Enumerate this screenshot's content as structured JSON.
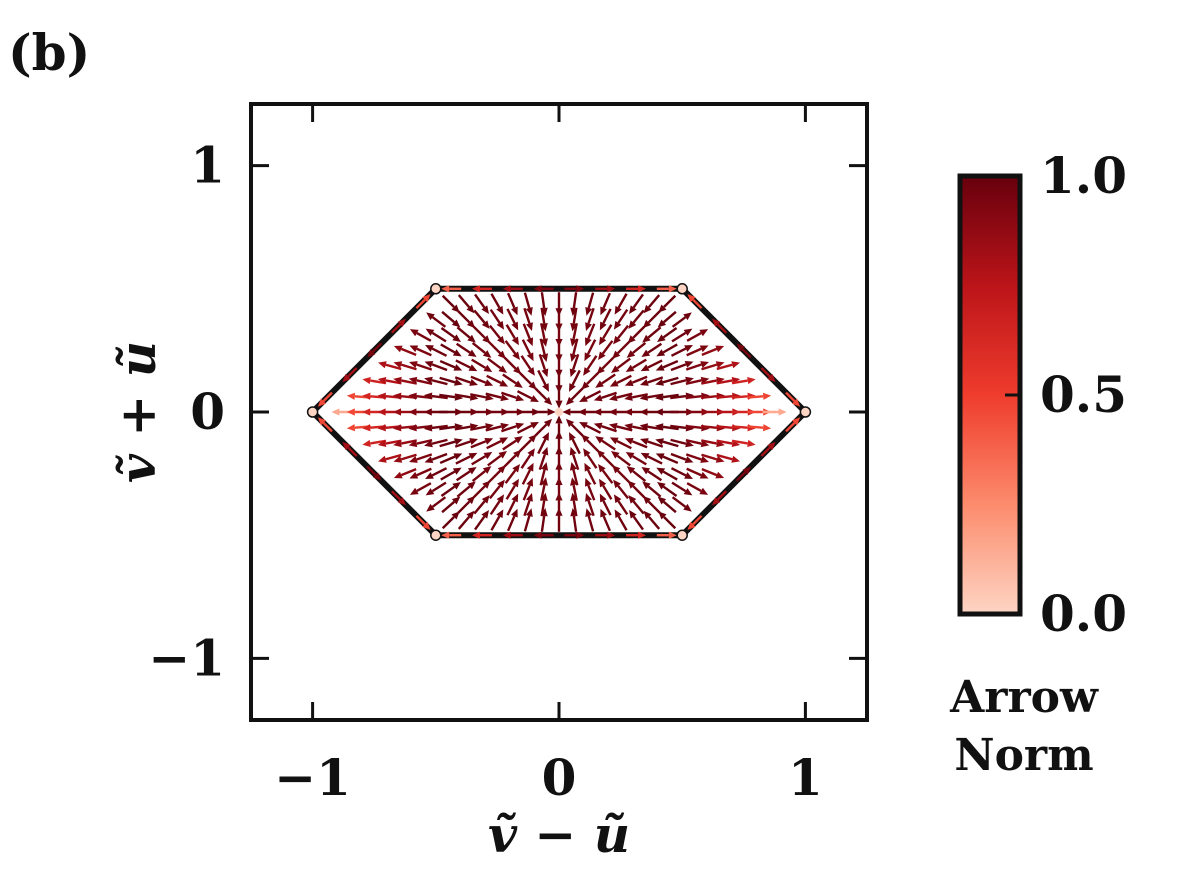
{
  "panel_label": "(b)",
  "chart_data": {
    "type": "quiver",
    "xlabel": "ṽ − ũ",
    "ylabel": "ṽ + ũ",
    "xlim": [
      -1.25,
      1.25
    ],
    "ylim": [
      -1.25,
      1.25
    ],
    "x_ticks": [
      {
        "value": -1,
        "label": "−1"
      },
      {
        "value": 0,
        "label": "0"
      },
      {
        "value": 1,
        "label": "1"
      }
    ],
    "y_ticks": [
      {
        "value": 1,
        "label": "1"
      },
      {
        "value": 0,
        "label": "0"
      },
      {
        "value": -1,
        "label": "−1"
      }
    ],
    "grid": false,
    "region": {
      "shape": "hexagon",
      "vertices": [
        [
          1,
          0
        ],
        [
          0.5,
          0.5
        ],
        [
          -0.5,
          0.5
        ],
        [
          -1,
          0
        ],
        [
          -0.5,
          -0.5
        ],
        [
          0.5,
          -0.5
        ]
      ]
    },
    "fixed_points": [
      [
        0,
        0
      ],
      [
        1,
        0
      ],
      [
        0.5,
        0.5
      ],
      [
        -0.5,
        0.5
      ],
      [
        -1,
        0
      ],
      [
        -0.5,
        -0.5
      ],
      [
        0.5,
        -0.5
      ]
    ],
    "field": "gradient flow: outward along the diagonals, inward along the axes, circulating along the hexagon edges",
    "colorbar": {
      "label_line1": "Arrow",
      "label_line2": "Norm",
      "min": 0.0,
      "max": 1.0,
      "ticks": [
        {
          "value": 1.0,
          "label": "1.0"
        },
        {
          "value": 0.5,
          "label": "0.5"
        },
        {
          "value": 0.0,
          "label": "0.0"
        }
      ],
      "colormap": "Reds",
      "colors": [
        "#fdd5c4",
        "#fc8b6c",
        "#ef3c2d",
        "#bb1419",
        "#67000d"
      ]
    }
  }
}
